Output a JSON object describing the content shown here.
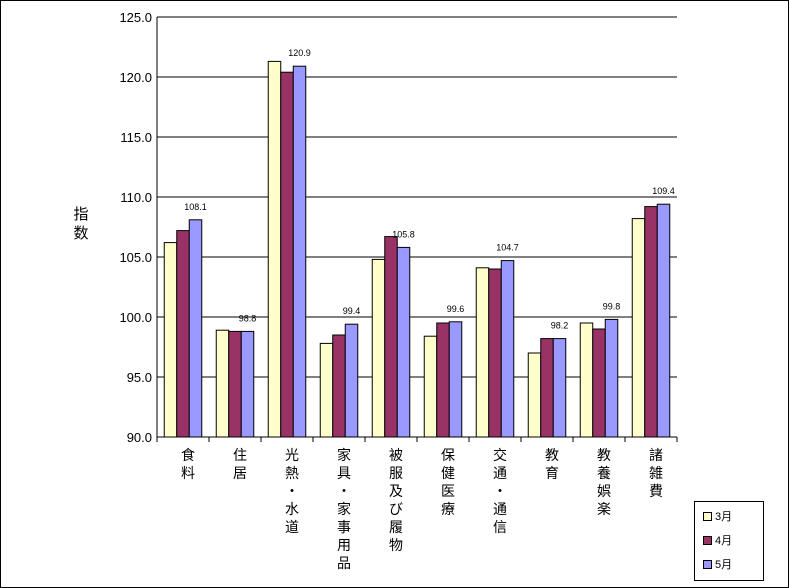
{
  "chart_data": {
    "type": "bar",
    "ylabel": "指数",
    "ylim": [
      90.0,
      125.0
    ],
    "yticks": [
      "90.0",
      "95.0",
      "100.0",
      "105.0",
      "110.0",
      "115.0",
      "120.0",
      "125.0"
    ],
    "categories": [
      "食料",
      "住居",
      "光熱・水道",
      "家具・家事用品",
      "被服及び履物",
      "保健医療",
      "交通・通信",
      "教育",
      "教養娯楽",
      "諸雑費"
    ],
    "series": [
      {
        "name": "3月",
        "color": "#ffffcc",
        "values": [
          106.2,
          98.9,
          121.3,
          97.8,
          104.8,
          98.4,
          104.1,
          97.0,
          99.5,
          108.2
        ]
      },
      {
        "name": "4月",
        "color": "#993366",
        "values": [
          107.2,
          98.8,
          120.4,
          98.5,
          106.7,
          99.5,
          104.0,
          98.2,
          99.0,
          109.2
        ]
      },
      {
        "name": "5月",
        "color": "#9999ff",
        "values": [
          108.1,
          98.8,
          120.9,
          99.4,
          105.8,
          99.6,
          104.7,
          98.2,
          99.8,
          109.4
        ]
      }
    ],
    "data_labels": [
      "108.1",
      "98.8",
      "120.9",
      "99.4",
      "105.8",
      "99.6",
      "104.7",
      "98.2",
      "99.8",
      "109.4"
    ],
    "legend_position": "bottom-right",
    "grid": true
  }
}
